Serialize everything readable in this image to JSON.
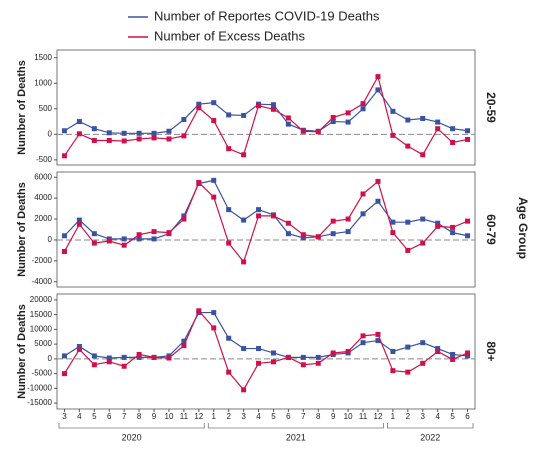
{
  "facet_label": "Age Group",
  "x_axis": {
    "year_groups": [
      {
        "label": "2020",
        "categories": [
          "3",
          "4",
          "5",
          "6",
          "7",
          "8",
          "9",
          "10",
          "11",
          "12"
        ]
      },
      {
        "label": "2021",
        "categories": [
          "1",
          "2",
          "3",
          "4",
          "5",
          "6",
          "7",
          "8",
          "9",
          "10",
          "11",
          "12"
        ]
      },
      {
        "label": "2022",
        "categories": [
          "1",
          "2",
          "3",
          "4",
          "5",
          "6"
        ]
      }
    ]
  },
  "chart_data": [
    {
      "type": "line",
      "panel_label": "20-59",
      "ylabel": "Number of Deaths",
      "ylim": [
        -600,
        1650
      ],
      "yticks": [
        -500,
        0,
        500,
        1000,
        1500
      ],
      "series": [
        {
          "name": "Number of Reportes COVID-19 Deaths",
          "color": "#3953a4",
          "values": [
            70,
            250,
            110,
            30,
            20,
            20,
            20,
            60,
            290,
            590,
            620,
            380,
            370,
            590,
            580,
            200,
            80,
            60,
            250,
            240,
            500,
            870,
            450,
            280,
            310,
            240,
            110,
            70
          ]
        },
        {
          "name": "Number of Excess Deaths",
          "color": "#d0104c",
          "values": [
            -420,
            10,
            -120,
            -120,
            -130,
            -90,
            -70,
            -90,
            -30,
            520,
            270,
            -280,
            -400,
            560,
            490,
            320,
            60,
            50,
            330,
            420,
            600,
            1130,
            -20,
            -230,
            -400,
            110,
            -160,
            -100
          ]
        }
      ]
    },
    {
      "type": "line",
      "panel_label": "60-79",
      "ylabel": "Number of Deaths",
      "ylim": [
        -4500,
        6500
      ],
      "yticks": [
        -4000,
        -2000,
        0,
        2000,
        4000,
        6000
      ],
      "series": [
        {
          "color": "#3953a4",
          "values": [
            400,
            1900,
            600,
            100,
            100,
            100,
            100,
            600,
            2300,
            5400,
            5700,
            2900,
            1900,
            2900,
            2400,
            600,
            200,
            300,
            600,
            800,
            2500,
            3700,
            1700,
            1700,
            2000,
            1600,
            700,
            400
          ]
        },
        {
          "color": "#d0104c",
          "values": [
            -1100,
            1500,
            -300,
            -100,
            -500,
            500,
            800,
            700,
            2000,
            5500,
            4100,
            -300,
            -2100,
            2300,
            2300,
            1600,
            500,
            300,
            1800,
            2000,
            4400,
            5600,
            700,
            -1000,
            -300,
            1300,
            1200,
            1800
          ]
        }
      ]
    },
    {
      "type": "line",
      "panel_label": "80+",
      "ylabel": "Number of Deaths",
      "ylim": [
        -17000,
        22000
      ],
      "yticks": [
        -15000,
        -10000,
        -5000,
        0,
        5000,
        10000,
        15000,
        20000
      ],
      "series": [
        {
          "color": "#3953a4",
          "values": [
            1000,
            4200,
            1000,
            300,
            500,
            500,
            500,
            1000,
            6000,
            15700,
            15700,
            7000,
            3500,
            3500,
            2000,
            500,
            500,
            500,
            1500,
            2000,
            5500,
            6200,
            2500,
            4000,
            5500,
            3500,
            1500,
            1000
          ]
        },
        {
          "color": "#d0104c",
          "values": [
            -5000,
            3200,
            -2000,
            -1000,
            -2500,
            1500,
            500,
            300,
            4500,
            16300,
            10500,
            -4500,
            -10500,
            -1500,
            -1000,
            500,
            -2000,
            -1500,
            2000,
            2500,
            7800,
            8300,
            -4000,
            -4500,
            -1500,
            2500,
            -200,
            2000
          ]
        }
      ]
    }
  ]
}
